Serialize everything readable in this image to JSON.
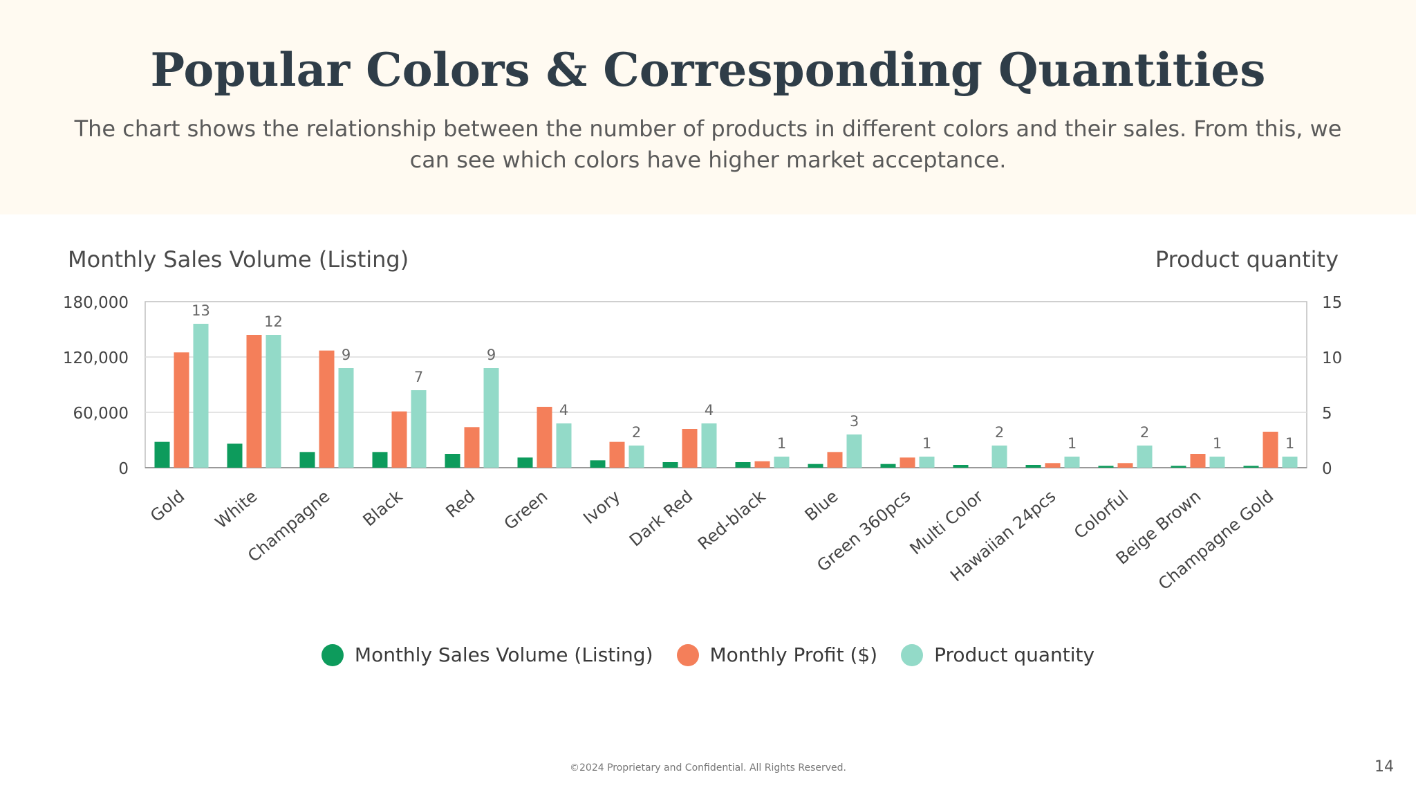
{
  "title": "Popular Colors & Corresponding Quantities",
  "subtitle": "The chart shows the relationship between the number of products in different colors and their sales. From this, we can see which colors have higher market acceptance.",
  "footer": "©2024 Proprietary and Confidential. All Rights Reserved.",
  "page_number": "14",
  "colors": {
    "sales": "#0d9b5c",
    "profit": "#f47f5a",
    "quantity": "#93dac8",
    "grid": "#dcdcdc",
    "axis": "#bfbfbf"
  },
  "chart_data": {
    "type": "bar",
    "title": "",
    "ylabel": "Monthly Sales Volume (Listing)",
    "y2label": "Product quantity",
    "ylim": [
      0,
      180000
    ],
    "y2lim": [
      0,
      15
    ],
    "yticks": [
      "0",
      "60,000",
      "120,000",
      "180,000"
    ],
    "yticks_values": [
      0,
      60000,
      120000,
      180000
    ],
    "y2ticks": [
      "0",
      "5",
      "10",
      "15"
    ],
    "y2ticks_values": [
      0,
      5,
      10,
      15
    ],
    "categories": [
      "Gold",
      "White",
      "Champagne",
      "Black",
      "Red",
      "Green",
      "Ivory",
      "Dark Red",
      "Red-black",
      "Blue",
      "Green 360pcs",
      "Multi Color",
      "Hawaiian 24pcs",
      "Colorful",
      "Beige Brown",
      "Champagne Gold"
    ],
    "series": [
      {
        "name": "Monthly Sales Volume (Listing)",
        "axis": "left",
        "values": [
          28000,
          26000,
          17000,
          17000,
          15000,
          11000,
          8000,
          6000,
          6000,
          4000,
          4000,
          3000,
          3000,
          2000,
          2000,
          2000
        ]
      },
      {
        "name": "Monthly Profit ($)",
        "axis": "left",
        "values": [
          125000,
          144000,
          127000,
          61000,
          44000,
          66000,
          28000,
          42000,
          7000,
          17000,
          11000,
          0,
          5000,
          5000,
          15000,
          39000
        ]
      },
      {
        "name": "Product quantity",
        "axis": "right",
        "values": [
          13,
          12,
          9,
          7,
          9,
          4,
          2,
          4,
          1,
          3,
          1,
          2,
          1,
          2,
          1,
          1
        ],
        "labels": [
          "13",
          "12",
          "9",
          "7",
          "9",
          "4",
          "2",
          "4",
          "1",
          "3",
          "1",
          "2",
          "1",
          "2",
          "1",
          "1"
        ]
      }
    ],
    "legend": [
      "Monthly Sales Volume (Listing)",
      "Monthly Profit ($)",
      "Product quantity"
    ],
    "legend_position": "bottom",
    "grid": true
  }
}
